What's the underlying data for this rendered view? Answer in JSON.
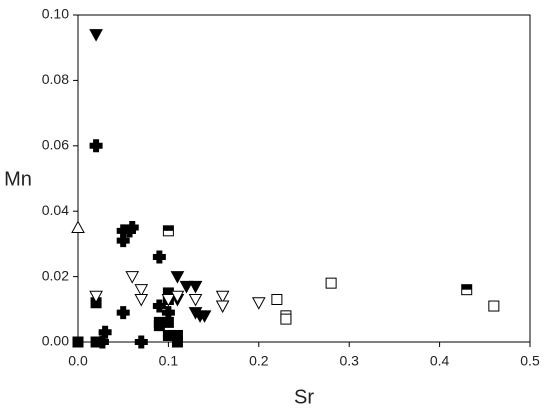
{
  "chart_data": {
    "type": "scatter",
    "x_label": "Sr",
    "y_label": "Mn",
    "xlim": [
      0,
      0.5
    ],
    "ylim": [
      0,
      0.1
    ],
    "xticks": [
      {
        "value": 0,
        "label": "0.0"
      },
      {
        "value": 0.1,
        "label": "0.1"
      },
      {
        "value": 0.2,
        "label": "0.2"
      },
      {
        "value": 0.3,
        "label": "0.3"
      },
      {
        "value": 0.4,
        "label": "0.4"
      },
      {
        "value": 0.5,
        "label": "0.5"
      }
    ],
    "yticks": [
      {
        "value": 0,
        "label": "0.00"
      },
      {
        "value": 0.02,
        "label": "0.02"
      },
      {
        "value": 0.04,
        "label": "0.04"
      },
      {
        "value": 0.06,
        "label": "0.06"
      },
      {
        "value": 0.08,
        "label": "0.08"
      },
      {
        "value": 0.1,
        "label": "0.10"
      }
    ],
    "series": [
      {
        "color": "#000000",
        "marker": "triangle-down",
        "fill": "full",
        "x": [
          0.02,
          0.11,
          0.12,
          0.13,
          0.11,
          0.13,
          0.14,
          0.135
        ],
        "values": [
          0.094,
          0.02,
          0.017,
          0.017,
          0.013,
          0.009,
          0.008,
          0.008
        ]
      },
      {
        "color": "#000000",
        "marker": "cross",
        "fill": "full",
        "x": [
          0.02,
          0.03,
          0.027,
          0.05,
          0.05,
          0.06,
          0.057,
          0.05,
          0.07,
          0.09,
          0.09,
          0.1
        ],
        "values": [
          0.06,
          0.003,
          0,
          0.031,
          0.034,
          0.035,
          0.034,
          0.009,
          0,
          0.026,
          0.011,
          0.009
        ]
      },
      {
        "color": "#000000",
        "marker": "square",
        "fill": "full",
        "x": [
          0,
          0.02,
          0.02,
          0.09,
          0.09,
          0.1,
          0.1,
          0.1,
          0.11,
          0.11,
          0.1
        ],
        "values": [
          0,
          0,
          0.012,
          0.006,
          0.005,
          0.015,
          0.013,
          0.002,
          0,
          0.002,
          0.006
        ]
      },
      {
        "color": "#000000",
        "marker": "triangle-down",
        "fill": "none",
        "x": [
          0.02,
          0.06,
          0.07,
          0.07,
          0.1,
          0.11,
          0.13,
          0.16,
          0.16,
          0.2
        ],
        "values": [
          0.014,
          0.02,
          0.016,
          0.013,
          0.013,
          0.014,
          0.013,
          0.014,
          0.011,
          0.012
        ]
      },
      {
        "color": "#000000",
        "marker": "square",
        "fill": "none",
        "x": [
          0.22,
          0.23,
          0.23,
          0.28,
          0.46
        ],
        "values": [
          0.013,
          0.008,
          0.007,
          0.018,
          0.011
        ]
      },
      {
        "color": "#000000",
        "marker": "square",
        "fill": "top-half",
        "x": [
          0.1,
          0.43
        ],
        "values": [
          0.034,
          0.016
        ]
      },
      {
        "color": "#000000",
        "marker": "triangle-up",
        "fill": "none",
        "x": [
          0
        ],
        "values": [
          0.035
        ]
      }
    ]
  }
}
